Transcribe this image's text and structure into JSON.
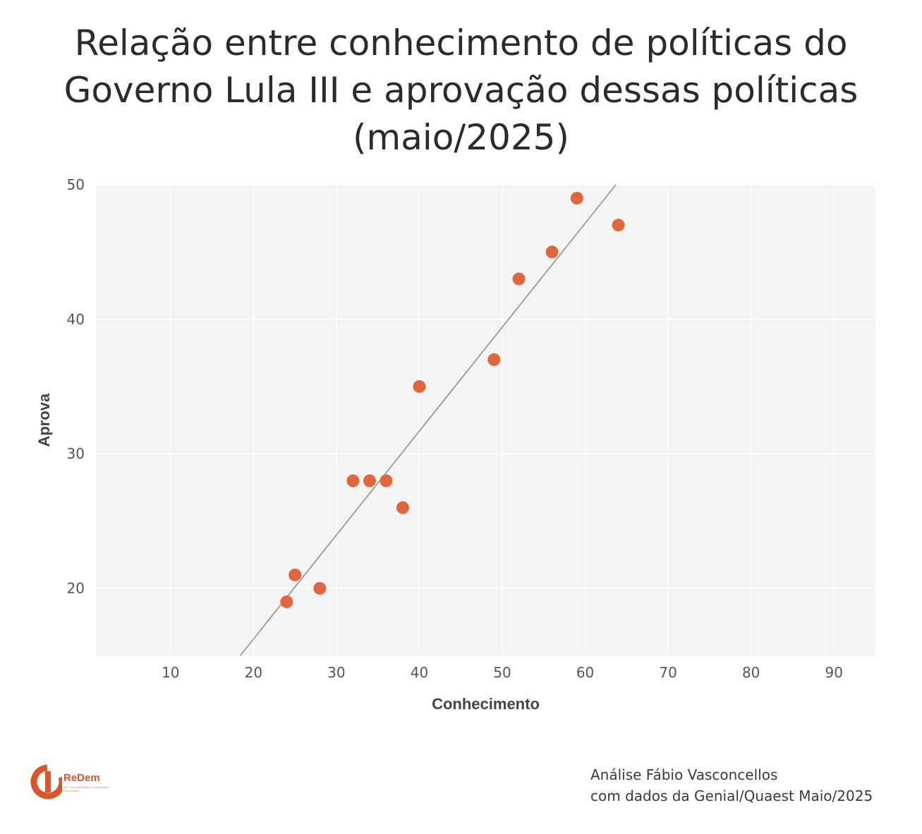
{
  "title_lines": [
    "Relação entre conhecimento de políticas do",
    "Governo Lula III e aprovação dessas políticas",
    "(maio/2025)"
  ],
  "logo": {
    "name": "ReDem",
    "subtitle": "INCT Representação e Legitimidade Democrática"
  },
  "caption_lines": [
    "Análise Fábio Vasconcellos",
    "com dados da Genial/Quaest Maio/2025"
  ],
  "colors": {
    "points": "#e0663d",
    "trendline": "#999999",
    "panel": "#f4f4f4",
    "grid": "#ffffff",
    "logo": "#d9552c"
  },
  "chart_data": {
    "type": "scatter",
    "xlabel": "Conhecimento",
    "ylabel": "Aprova",
    "xlim": [
      1,
      95
    ],
    "ylim": [
      15,
      50
    ],
    "x_ticks": [
      10,
      20,
      30,
      40,
      50,
      60,
      70,
      80,
      90
    ],
    "y_ticks": [
      20,
      30,
      40,
      50
    ],
    "grid": true,
    "trendline": {
      "type": "linear",
      "from": [
        18.4,
        15
      ],
      "to": [
        63.7,
        50
      ]
    },
    "points": [
      {
        "x": 24,
        "y": 19
      },
      {
        "x": 25,
        "y": 21
      },
      {
        "x": 28,
        "y": 20
      },
      {
        "x": 32,
        "y": 28
      },
      {
        "x": 34,
        "y": 28
      },
      {
        "x": 36,
        "y": 28
      },
      {
        "x": 38,
        "y": 26
      },
      {
        "x": 40,
        "y": 35
      },
      {
        "x": 49,
        "y": 37
      },
      {
        "x": 52,
        "y": 43
      },
      {
        "x": 56,
        "y": 45
      },
      {
        "x": 59,
        "y": 49
      },
      {
        "x": 64,
        "y": 47
      }
    ]
  }
}
